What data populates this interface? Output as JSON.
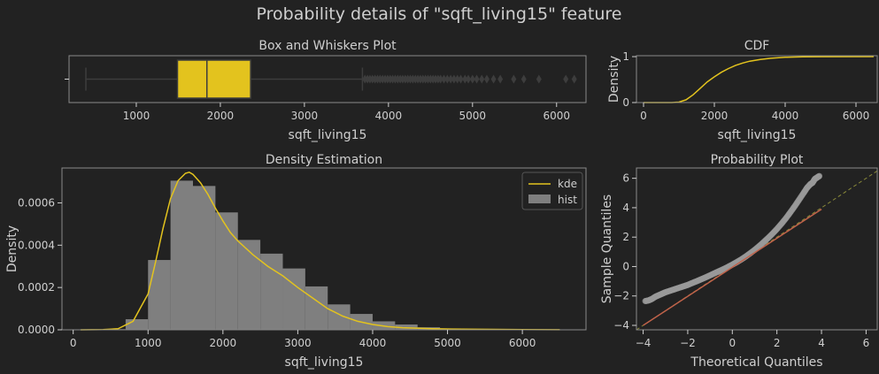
{
  "suptitle": "Probability details of \"sqft_living15\" feature",
  "colors": {
    "background": "#222222",
    "accent": "#e3c31e",
    "hist": "#7f7f7f",
    "fit": "#c0624a",
    "ref": "#8a8a3a",
    "text": "#cfcfcf",
    "frame": "#8a8a8a"
  },
  "chart_data": [
    {
      "id": "box",
      "type": "box",
      "title": "Box and Whiskers Plot",
      "xlabel": "sqft_living15",
      "xlim": [
        200,
        6350
      ],
      "xticks": [
        1000,
        2000,
        3000,
        4000,
        5000,
        6000
      ],
      "stats": {
        "whisker_low": 400,
        "q1": 1490,
        "median": 1840,
        "q3": 2360,
        "whisker_high": 3690
      },
      "outliers": [
        3720,
        3750,
        3780,
        3810,
        3840,
        3870,
        3900,
        3930,
        3960,
        3990,
        4020,
        4050,
        4080,
        4110,
        4140,
        4170,
        4200,
        4230,
        4260,
        4290,
        4320,
        4350,
        4380,
        4410,
        4440,
        4470,
        4500,
        4530,
        4560,
        4590,
        4620,
        4660,
        4700,
        4740,
        4780,
        4820,
        4860,
        4910,
        4950,
        5000,
        5050,
        5110,
        5170,
        5250,
        5330,
        5490,
        5610,
        5790,
        6110,
        6210
      ]
    },
    {
      "id": "cdf",
      "type": "line",
      "title": "CDF",
      "xlabel": "sqft_living15",
      "ylabel": "Density",
      "xlim": [
        -200,
        6600
      ],
      "ylim": [
        0,
        1.02
      ],
      "xticks": [
        0,
        2000,
        4000,
        6000
      ],
      "yticks": [
        0,
        1
      ],
      "x": [
        0,
        800,
        1000,
        1200,
        1400,
        1600,
        1800,
        2000,
        2200,
        2400,
        2600,
        2800,
        3000,
        3300,
        3600,
        4000,
        4500,
        5000,
        6500
      ],
      "y": [
        0,
        0.0,
        0.01,
        0.06,
        0.17,
        0.31,
        0.45,
        0.56,
        0.66,
        0.74,
        0.81,
        0.86,
        0.9,
        0.94,
        0.965,
        0.985,
        0.995,
        0.999,
        1.0
      ]
    },
    {
      "id": "density",
      "type": "histogram+kde",
      "title": "Density Estimation",
      "xlabel": "sqft_living15",
      "ylabel": "Density",
      "xlim": [
        -150,
        6850
      ],
      "ylim": [
        0,
        0.000765
      ],
      "xticks": [
        0,
        1000,
        2000,
        3000,
        4000,
        5000,
        6000
      ],
      "yticks": [
        0.0,
        0.0002,
        0.0004,
        0.0006
      ],
      "ytick_labels": [
        "0.0000",
        "0.0002",
        "0.0004",
        "0.0006"
      ],
      "legend": {
        "position": "top-right",
        "entries": [
          "kde",
          "hist"
        ]
      },
      "hist_edges": [
        100,
        400,
        700,
        1000,
        1300,
        1600,
        1900,
        2200,
        2500,
        2800,
        3100,
        3400,
        3700,
        4000,
        4300,
        4600,
        4900,
        5200,
        5500,
        5800,
        6100,
        6400
      ],
      "hist_values": [
        0.0,
        3e-06,
        5e-05,
        0.00033,
        0.000705,
        0.00068,
        0.000555,
        0.000425,
        0.00036,
        0.00029,
        0.000205,
        0.00012,
        7.5e-05,
        4e-05,
        2.5e-05,
        1.2e-05,
        6e-06,
        3e-06,
        2e-06,
        1e-06,
        1e-06
      ],
      "kde_x": [
        100,
        400,
        600,
        800,
        1000,
        1100,
        1200,
        1300,
        1400,
        1500,
        1550,
        1600,
        1700,
        1800,
        1900,
        2000,
        2100,
        2200,
        2400,
        2600,
        2800,
        3000,
        3200,
        3400,
        3600,
        3800,
        4000,
        4200,
        4400,
        4800,
        5200,
        5600,
        6000,
        6500
      ],
      "kde_y": [
        0,
        1e-06,
        5e-06,
        4e-05,
        0.00017,
        0.00032,
        0.00048,
        0.00062,
        0.000705,
        0.00074,
        0.000745,
        0.000735,
        0.000695,
        0.00064,
        0.000575,
        0.000515,
        0.00046,
        0.00042,
        0.000355,
        0.0003,
        0.000255,
        0.0002,
        0.00015,
        0.0001,
        6.5e-05,
        4e-05,
        2.5e-05,
        1.5e-05,
        1e-05,
        5e-06,
        3e-06,
        2e-06,
        1e-06,
        5e-07
      ]
    },
    {
      "id": "qq",
      "type": "scatter",
      "title": "Probability Plot",
      "xlabel": "Theoretical Quantiles",
      "ylabel": "Sample Quantiles",
      "xlim": [
        -4.3,
        6.5
      ],
      "ylim": [
        -4.3,
        6.7
      ],
      "xticks": [
        -4,
        -2,
        0,
        2,
        4,
        6
      ],
      "yticks": [
        -4,
        -2,
        0,
        2,
        4,
        6
      ],
      "fit_line": {
        "x": [
          -4,
          4
        ],
        "y": [
          -4,
          3.9
        ]
      },
      "ref_line": {
        "x": [
          -4.3,
          6.5
        ],
        "y": [
          -4.3,
          6.5
        ]
      },
      "points": {
        "x": [
          -3.9,
          -3.75,
          -3.6,
          -3.45,
          -3.3,
          -3.15,
          -3.0,
          -2.8,
          -2.6,
          -2.4,
          -2.2,
          -2.0,
          -1.8,
          -1.6,
          -1.4,
          -1.2,
          -1.0,
          -0.8,
          -0.6,
          -0.4,
          -0.2,
          0.0,
          0.2,
          0.4,
          0.6,
          0.8,
          1.0,
          1.2,
          1.4,
          1.6,
          1.8,
          2.0,
          2.2,
          2.4,
          2.6,
          2.8,
          3.0,
          3.2,
          3.35,
          3.5,
          3.6,
          3.7,
          3.8,
          3.9
        ],
        "y": [
          -2.35,
          -2.3,
          -2.2,
          -2.05,
          -1.95,
          -1.85,
          -1.75,
          -1.65,
          -1.55,
          -1.45,
          -1.35,
          -1.25,
          -1.12,
          -1.0,
          -0.87,
          -0.74,
          -0.6,
          -0.46,
          -0.32,
          -0.18,
          -0.03,
          0.13,
          0.3,
          0.48,
          0.68,
          0.9,
          1.13,
          1.38,
          1.65,
          1.93,
          2.23,
          2.55,
          2.9,
          3.27,
          3.68,
          4.1,
          4.55,
          5.0,
          5.35,
          5.6,
          5.7,
          5.95,
          6.05,
          6.15
        ]
      }
    }
  ]
}
